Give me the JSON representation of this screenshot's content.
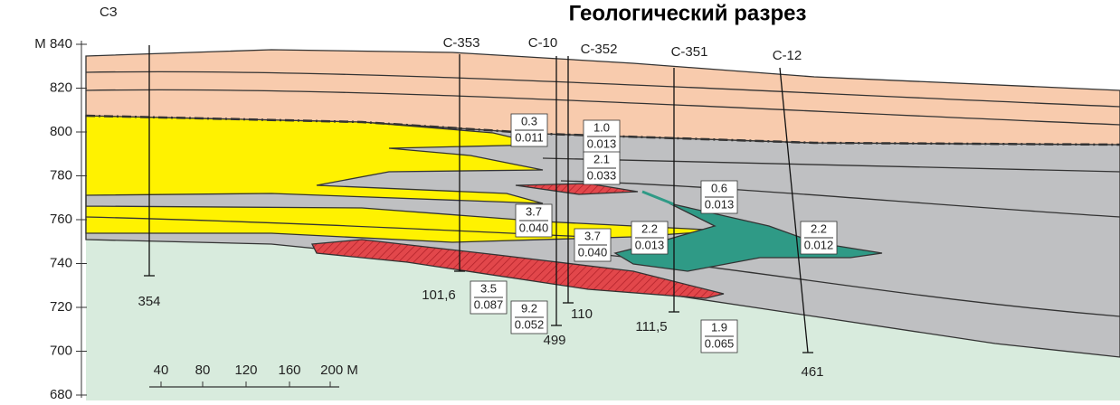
{
  "header": {
    "title": "Геологический разрез",
    "direction": "СЗ"
  },
  "axis": {
    "ticks": [
      "М 840",
      "820",
      "800",
      "780",
      "760",
      "740",
      "720",
      "700",
      "680"
    ]
  },
  "wells": [
    {
      "depth": "354"
    },
    {
      "name": "С-353",
      "depth": "101,6"
    },
    {
      "name": "С-10",
      "depth": "499"
    },
    {
      "name": "С-352",
      "depth": "110"
    },
    {
      "name": "С-351",
      "depth": "111,5"
    },
    {
      "name": "С-12",
      "depth": "461"
    }
  ],
  "samples": [
    {
      "thickness": "0.3",
      "grade": "0.011"
    },
    {
      "thickness": "1.0",
      "grade": "0.013"
    },
    {
      "thickness": "2.1",
      "grade": "0.033"
    },
    {
      "thickness": "0.6",
      "grade": "0.013"
    },
    {
      "thickness": "3.7",
      "grade": "0.040"
    },
    {
      "thickness": "3.7",
      "grade": "0.040"
    },
    {
      "thickness": "2.2",
      "grade": "0.013"
    },
    {
      "thickness": "2.2",
      "grade": "0.012"
    },
    {
      "thickness": "3.5",
      "grade": "0.087"
    },
    {
      "thickness": "9.2",
      "grade": "0.052"
    },
    {
      "thickness": "1.9",
      "grade": "0.065"
    }
  ],
  "scale": {
    "labels": [
      "40",
      "80",
      "120",
      "160",
      "200 М"
    ]
  }
}
